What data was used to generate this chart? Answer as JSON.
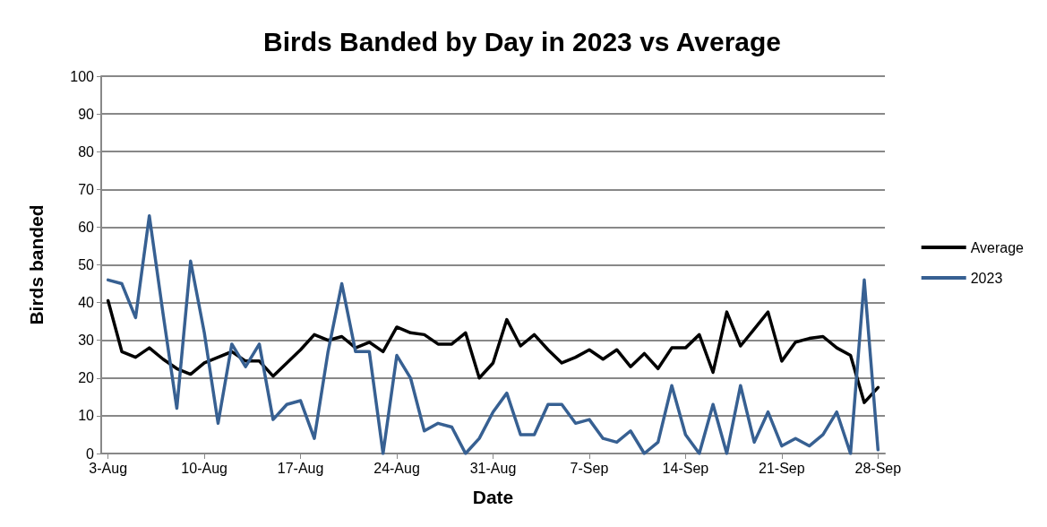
{
  "chart_data": {
    "type": "line",
    "title": "Birds Banded by Day in 2023 vs Average",
    "xlabel": "Date",
    "ylabel": "Birds banded",
    "categories": [
      "3-Aug",
      null,
      null,
      null,
      null,
      null,
      null,
      "10-Aug",
      null,
      null,
      null,
      null,
      null,
      null,
      "17-Aug",
      null,
      null,
      null,
      null,
      null,
      null,
      "24-Aug",
      null,
      null,
      null,
      null,
      null,
      null,
      "31-Aug",
      null,
      null,
      null,
      null,
      null,
      null,
      "7-Sep",
      null,
      null,
      null,
      null,
      null,
      null,
      "14-Sep",
      null,
      null,
      null,
      null,
      null,
      null,
      "21-Sep",
      null,
      null,
      null,
      null,
      null,
      null,
      "28-Sep"
    ],
    "series": [
      {
        "name": "Average",
        "color": "#000000",
        "values": [
          40.5,
          27,
          25.5,
          28,
          25,
          22.5,
          21,
          24,
          25.5,
          27,
          24.5,
          24.5,
          20.5,
          24,
          27.5,
          31.5,
          30,
          31,
          28,
          29.5,
          27,
          33.5,
          32,
          31.5,
          29,
          29,
          32,
          20,
          24,
          35.5,
          28.5,
          31.5,
          27.5,
          24,
          25.5,
          27.5,
          25,
          27.5,
          23,
          26.5,
          22.5,
          28,
          28,
          31.5,
          21.5,
          37.5,
          28.5,
          33,
          37.5,
          24.5,
          29.5,
          30.5,
          31,
          28,
          26,
          13.5,
          17.5
        ]
      },
      {
        "name": "2023",
        "color": "#376092",
        "values": [
          46,
          45,
          36,
          63,
          37,
          12,
          51,
          32,
          8,
          29,
          23,
          29,
          9,
          13,
          14,
          4,
          27,
          45,
          27,
          27,
          0,
          26,
          20,
          6,
          8,
          7,
          0,
          4,
          11,
          16,
          5,
          5,
          13,
          13,
          8,
          9,
          4,
          3,
          6,
          0,
          3,
          18,
          5,
          0,
          13,
          0,
          18,
          3,
          11,
          2,
          4,
          2,
          5,
          11,
          0,
          46,
          1
        ]
      }
    ],
    "ylim": [
      0,
      100
    ],
    "yticks": [
      0,
      10,
      20,
      30,
      40,
      50,
      60,
      70,
      80,
      90,
      100
    ],
    "grid": "y",
    "legend": "right",
    "marker": "none",
    "line_style": "solid"
  }
}
